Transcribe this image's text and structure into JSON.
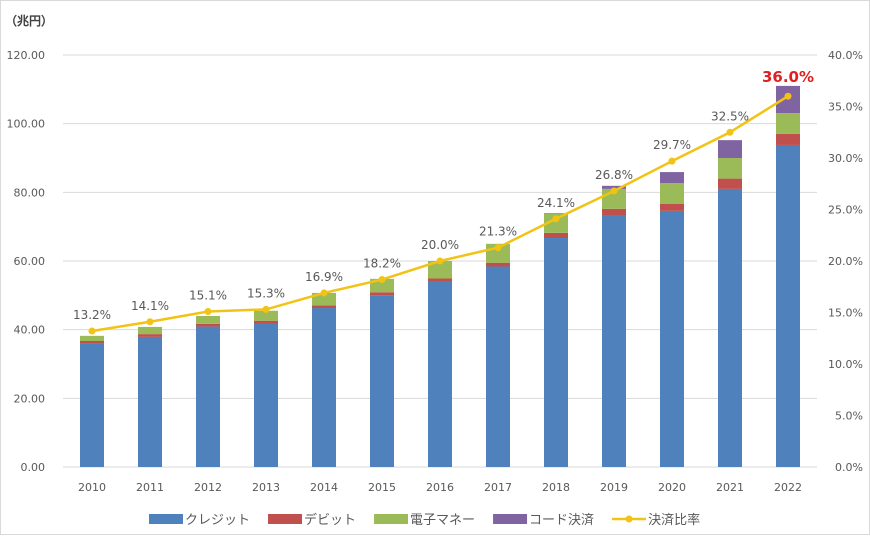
{
  "chart_data": {
    "type": "bar",
    "stacked": true,
    "y_unit_label": "（兆円）",
    "categories": [
      "2010",
      "2011",
      "2012",
      "2013",
      "2014",
      "2015",
      "2016",
      "2017",
      "2018",
      "2019",
      "2020",
      "2021",
      "2022"
    ],
    "series": [
      {
        "name": "クレジット",
        "color": "#4f81bd",
        "values": [
          36.0,
          37.9,
          40.9,
          41.8,
          46.3,
          50.0,
          53.9,
          58.4,
          66.7,
          73.4,
          74.6,
          81.0,
          93.8
        ]
      },
      {
        "name": "デビット",
        "color": "#c0504d",
        "values": [
          0.7,
          0.8,
          0.8,
          0.8,
          0.8,
          0.9,
          1.0,
          1.1,
          1.5,
          1.8,
          2.0,
          3.0,
          3.2
        ]
      },
      {
        "name": "電子マネー",
        "color": "#9bbb59",
        "values": [
          1.5,
          2.1,
          2.3,
          2.9,
          3.6,
          3.9,
          5.1,
          5.5,
          5.5,
          5.8,
          6.1,
          6.0,
          6.1
        ]
      },
      {
        "name": "コード決済",
        "color": "#8064a2",
        "values": [
          0,
          0,
          0,
          0,
          0,
          0,
          0,
          0,
          0.2,
          0.9,
          3.2,
          5.2,
          7.9
        ]
      }
    ],
    "line_series": {
      "name": "決済比率",
      "color": "#f2c314",
      "axis": "right",
      "values": [
        13.2,
        14.1,
        15.1,
        15.3,
        16.9,
        18.2,
        20.0,
        21.3,
        24.1,
        26.8,
        29.7,
        32.5,
        36.0
      ],
      "labels": [
        "13.2%",
        "14.1%",
        "15.1%",
        "15.3%",
        "16.9%",
        "18.2%",
        "20.0%",
        "21.3%",
        "24.1%",
        "26.8%",
        "29.7%",
        "32.5%",
        "36.0%"
      ],
      "highlight_color": "#e02020"
    },
    "y_left": {
      "range": [
        0,
        120
      ],
      "ticks": [
        "0.00",
        "20.00",
        "40.00",
        "60.00",
        "80.00",
        "100.00",
        "120.00"
      ]
    },
    "y_right": {
      "range": [
        0,
        40
      ],
      "ticks": [
        "0.0%",
        "5.0%",
        "10.0%",
        "15.0%",
        "20.0%",
        "25.0%",
        "30.0%",
        "35.0%",
        "40.0%"
      ]
    },
    "grid": true,
    "legend": "bottom"
  }
}
